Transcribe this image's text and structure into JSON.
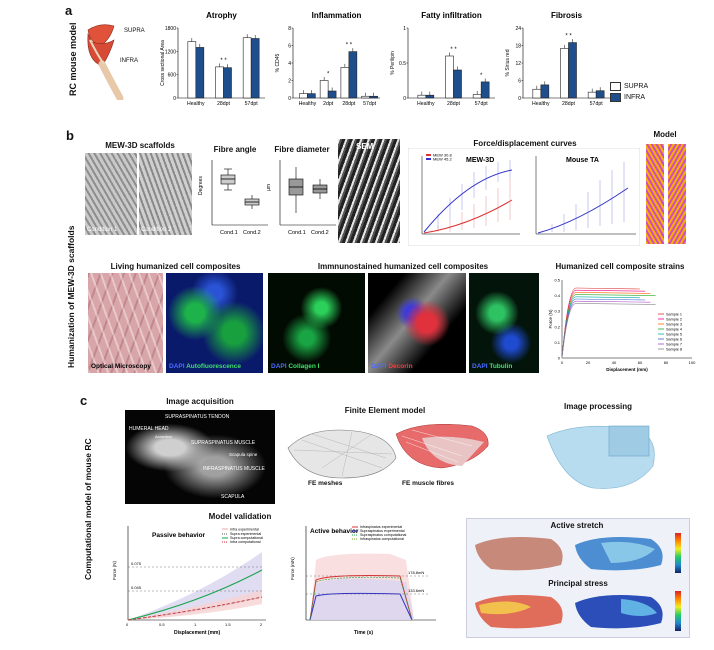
{
  "panel_a": {
    "label": "a",
    "side_label": "RC mouse model",
    "muscle_labels": [
      "SUPRA",
      "INFRA"
    ],
    "legend": [
      "SUPRA",
      "INFRA"
    ],
    "colors": {
      "supra": "#ffffff",
      "infra": "#1f4e8c"
    }
  },
  "panel_b": {
    "label": "b",
    "side_label": "Humanization of MEW-3D scaffolds",
    "scaffold_title": "MEW-3D scaffolds",
    "condition_labels": [
      "Condition 1",
      "Condition 2"
    ],
    "fibre_angle_title": "Fibre angle",
    "fibre_diameter_title": "Fibre diameter",
    "sem_label": "SEM",
    "force_title": "Force/displacement curves",
    "mew_title": "MEW-3D",
    "mouse_title": "Mouse TA",
    "mew_legend": [
      "MEW 30.8",
      "MEW 45.2"
    ],
    "model_title": "Model",
    "living_title": "Living humanized cell composites",
    "immuno_title": "Immnunostained humanized cell composites",
    "strain_title": "Humanized cell composite strains",
    "optical_caption": "Optical Microscopy",
    "fluor_captions": [
      {
        "a": "DAPI",
        "b": "Autofluorescence"
      },
      {
        "a": "DAPI",
        "b": "Collagen I"
      },
      {
        "a": "DAPI",
        "b": "Decorin"
      },
      {
        "a": "DAPI",
        "b": "Tubulin"
      }
    ],
    "strain_samples": [
      "Sample 1",
      "Sample 2",
      "Sample 3",
      "Sample 4",
      "Sample 5",
      "Sample 6",
      "Sample 7",
      "Sample 8"
    ],
    "strain_xlabel": "Displacement (mm)",
    "strain_ylabel": "Force (N)",
    "strain_xticks": [
      "0",
      "20",
      "40",
      "60",
      "80",
      "100"
    ],
    "strain_yticks": [
      "0",
      "0.1",
      "0.2",
      "0.3",
      "0.4",
      "0.5"
    ]
  },
  "panel_c": {
    "label": "c",
    "side_label": "Computational model of mouse RC",
    "acq_title": "Image acquisition",
    "acq_labels": [
      "SUPRASPINATUS TENDON",
      "HUMERAL HEAD",
      "SUPRASPINATUS MUSCLE",
      "Scapula spine",
      "INFRASPINATUS MUSCLE",
      "SCAPULA",
      "Acromion"
    ],
    "fe_title": "Finite Element model",
    "fe_mesh": "FE meshes",
    "fe_fibres": "FE muscle fibres",
    "proc_title": "Image processing",
    "validation_title": "Model validation",
    "passive_title": "Passive behavior",
    "active_title": "Active behavior",
    "active_stretch": "Active stretch",
    "principal_stress": "Principal stress",
    "passive_legend": [
      "Infra experimental",
      "Supra experimental",
      "Supra computational",
      "Infra computational"
    ],
    "active_legend": [
      "Infraspinatus experimental",
      "Supraspinatus experimental",
      "Supraspinatus computational",
      "Infraspinatus computational"
    ],
    "passive_xlabel": "Displacement (mm)",
    "passive_ylabel": "Force (N)",
    "active_xlabel": "Time (s)",
    "active_ylabel": "Force (mN)",
    "passive_annot": [
      "0.075",
      "0.045"
    ],
    "active_annot": [
      "178.8mN",
      "133.6mN"
    ]
  },
  "chart_data": [
    {
      "type": "bar",
      "title": "Atrophy",
      "ylabel": "Cross sectional Area",
      "categories": [
        "Healthy",
        "28dpt",
        "57dpt"
      ],
      "series": [
        {
          "name": "SUPRA",
          "values": [
            1450,
            800,
            1550
          ]
        },
        {
          "name": "INFRA",
          "values": [
            1300,
            780,
            1530
          ]
        }
      ],
      "ylim": [
        0,
        1800
      ],
      "yticks": [
        "0",
        "600",
        "1200",
        "1800"
      ],
      "stars": [
        "",
        "* *",
        ""
      ]
    },
    {
      "type": "bar",
      "title": "Inflammation",
      "ylabel": "% CD45",
      "categories": [
        "Healthy",
        "2dpt",
        "28dpt",
        "57dpt"
      ],
      "series": [
        {
          "name": "SUPRA",
          "values": [
            0.5,
            2.0,
            3.5,
            0.2
          ]
        },
        {
          "name": "INFRA",
          "values": [
            0.5,
            0.8,
            5.3,
            0.2
          ]
        }
      ],
      "ylim": [
        0,
        8
      ],
      "yticks": [
        "0",
        "2",
        "4",
        "6",
        "8"
      ],
      "stars": [
        "",
        "*",
        "* *",
        ""
      ]
    },
    {
      "type": "bar",
      "title": "Fatty infiltration",
      "ylabel": "% Perilipin",
      "categories": [
        "Healthy",
        "28dpt",
        "57dpt"
      ],
      "series": [
        {
          "name": "SUPRA",
          "values": [
            0.04,
            0.6,
            0.05
          ]
        },
        {
          "name": "INFRA",
          "values": [
            0.04,
            0.4,
            0.23
          ]
        }
      ],
      "ylim": [
        0,
        1
      ],
      "yticks": [
        "0",
        "0.5",
        "1"
      ],
      "stars": [
        "",
        "* *",
        "*"
      ]
    },
    {
      "type": "bar",
      "title": "Fibrosis",
      "ylabel": "% Sirius red",
      "categories": [
        "Healthy",
        "28dpt",
        "57dpt"
      ],
      "series": [
        {
          "name": "SUPRA",
          "values": [
            3,
            17,
            2
          ]
        },
        {
          "name": "INFRA",
          "values": [
            4.5,
            19,
            2.5
          ]
        }
      ],
      "ylim": [
        0,
        24
      ],
      "yticks": [
        "0",
        "6",
        "12",
        "18",
        "24"
      ],
      "stars": [
        "",
        "* *",
        ""
      ]
    }
  ]
}
